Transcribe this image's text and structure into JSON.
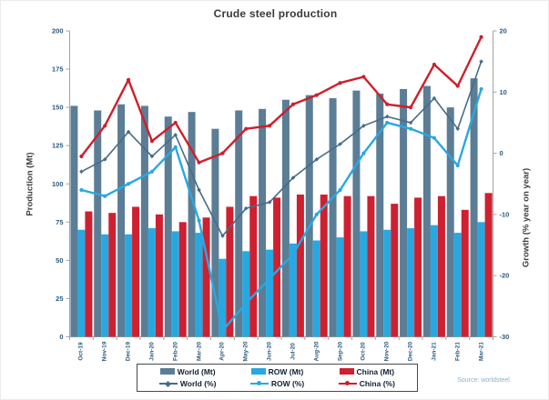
{
  "title": "Crude steel production",
  "source": "Source: worldsteel",
  "axes": {
    "left_label": "Production (Mt)",
    "right_label": "Growth (% year on year)",
    "left_ticks": [
      0,
      25,
      50,
      75,
      100,
      125,
      150,
      175,
      200
    ],
    "right_ticks": [
      20,
      10,
      0,
      -10,
      -20,
      -30
    ]
  },
  "legend": {
    "items": [
      {
        "label": "World (Mt)",
        "kind": "bar",
        "color_key": "world_bar"
      },
      {
        "label": "ROW (Mt)",
        "kind": "bar",
        "color_key": "row_bar"
      },
      {
        "label": "China (Mt)",
        "kind": "bar",
        "color_key": "china_bar"
      },
      {
        "label": "World (%)",
        "kind": "line",
        "color_key": "world_line"
      },
      {
        "label": "ROW (%)",
        "kind": "line",
        "color_key": "row_line"
      },
      {
        "label": "China (%)",
        "kind": "line",
        "color_key": "china_line"
      }
    ]
  },
  "colors": {
    "world_bar": "#5b7d95",
    "row_bar": "#28a8e1",
    "china_bar": "#ce2030",
    "world_line": "#476c89",
    "row_line": "#28a8e1",
    "china_line": "#ce1f2b",
    "axis": "#a3a3a3",
    "tick_text": "#2d5a7d",
    "title_text": "#3a3a3a",
    "legend_text": "#122033",
    "source_text": "#8fafc8"
  },
  "chart_data": {
    "type": "bar+line combo",
    "categories": [
      "Oct-19",
      "Nov-19",
      "Dec-19",
      "Jan-20",
      "Feb-20",
      "Mar-20",
      "Apr-20",
      "May-20",
      "Jun-20",
      "Jul-20",
      "Aug-20",
      "Sep-20",
      "Oct-20",
      "Nov-20",
      "Dec-20",
      "Jan-21",
      "Feb-21",
      "Mar-21"
    ],
    "left_axis": {
      "label": "Production (Mt)",
      "min": 0,
      "max": 200,
      "step": 25
    },
    "right_axis": {
      "label": "Growth (% year on year)",
      "min": -30,
      "max": 20,
      "step": 10
    },
    "grid": false,
    "legend_position": "bottom",
    "series": [
      {
        "name": "World (Mt)",
        "type": "bar",
        "axis": "left",
        "color_key": "world_bar",
        "values": [
          151,
          148,
          152,
          151,
          144,
          147,
          136,
          148,
          149,
          155,
          158,
          156,
          161,
          159,
          162,
          164,
          150,
          169
        ]
      },
      {
        "name": "ROW (Mt)",
        "type": "bar",
        "axis": "left",
        "color_key": "row_bar",
        "values": [
          70,
          67,
          67,
          71,
          69,
          68,
          51,
          56,
          57,
          61,
          63,
          65,
          69,
          70,
          71,
          73,
          68,
          75
        ]
      },
      {
        "name": "China (Mt)",
        "type": "bar",
        "axis": "left",
        "color_key": "china_bar",
        "values": [
          82,
          81,
          85,
          80,
          75,
          78,
          85,
          92,
          91,
          93,
          93,
          92,
          92,
          87,
          91,
          92,
          83,
          94
        ]
      },
      {
        "name": "World (%)",
        "type": "line",
        "axis": "right",
        "color_key": "world_line",
        "marker": "diamond",
        "width": 1.6,
        "values": [
          -3,
          -1,
          3.5,
          -0.5,
          3,
          -6,
          -13.5,
          -9,
          -8,
          -4,
          -1,
          1.5,
          4.5,
          6,
          5,
          9,
          4,
          15
        ]
      },
      {
        "name": "ROW (%)",
        "type": "line",
        "axis": "right",
        "color_key": "row_line",
        "marker": "circle",
        "width": 2.4,
        "values": [
          -6,
          -7,
          -5,
          -3,
          1,
          -11,
          -29,
          -24.5,
          -20.5,
          -16.5,
          -10,
          -6,
          0,
          5,
          4,
          2.5,
          -2,
          10.5
        ]
      },
      {
        "name": "China (%)",
        "type": "line",
        "axis": "right",
        "color_key": "china_line",
        "marker": "circle",
        "width": 2.4,
        "values": [
          -0.5,
          4.5,
          12,
          2,
          5,
          -1.5,
          0,
          4,
          4.5,
          8,
          9.5,
          11.5,
          12.5,
          8,
          7.5,
          14.5,
          11,
          19
        ]
      }
    ]
  }
}
